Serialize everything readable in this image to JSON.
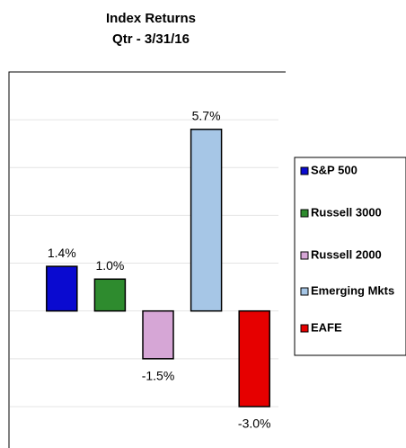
{
  "chart_data": {
    "type": "bar",
    "title": "Index Returns",
    "subtitle": "Qtr - 3/31/16",
    "categories": [
      "S&P 500",
      "Russell 3000",
      "Russell 2000",
      "Emerging Mkts",
      "EAFE"
    ],
    "values": [
      1.4,
      1.0,
      -1.5,
      5.7,
      -3.0
    ],
    "value_labels": [
      "1.4%",
      "1.0%",
      "-1.5%",
      "5.7%",
      "-3.0%"
    ],
    "colors": [
      "#0a0ad0",
      "#2e8b2e",
      "#d6a6d6",
      "#a6c6e6",
      "#e60000"
    ],
    "ylim": [
      -4.3,
      7.5
    ],
    "yticks": [
      -3,
      -1.5,
      0,
      1.5,
      3,
      4.5,
      6
    ],
    "grid": true,
    "legend": "right"
  }
}
